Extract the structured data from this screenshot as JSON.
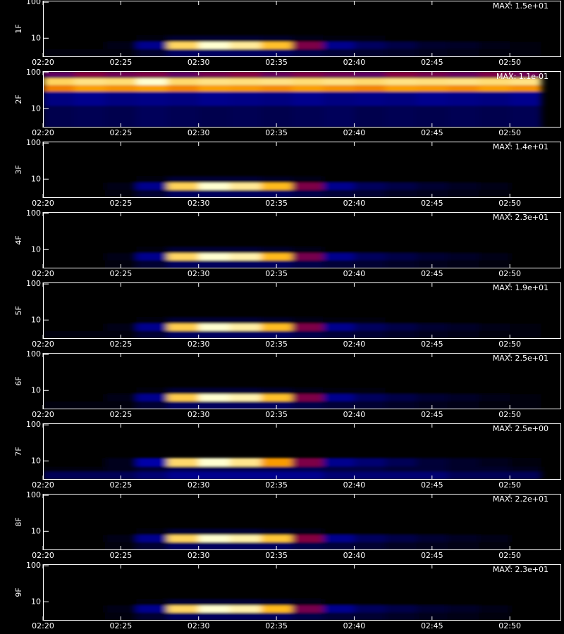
{
  "chart_data": [
    {
      "type": "heatmap",
      "ylabel": "1F",
      "max": {
        "value": 15,
        "label": "MAX: 1.5e+01"
      },
      "log_y": true,
      "colormap": [
        "#000000",
        "#0000b0",
        "#d00000",
        "#ffb000",
        "#ffffd0"
      ],
      "xlim": [
        140,
        173.3
      ],
      "xticks": [
        {
          "value": 140,
          "label": "02:20"
        },
        {
          "value": 145,
          "label": "02:25"
        },
        {
          "value": 150,
          "label": "02:30"
        },
        {
          "value": 155,
          "label": "02:35"
        },
        {
          "value": 160,
          "label": "02:40"
        },
        {
          "value": 165,
          "label": "02:45"
        },
        {
          "value": 170,
          "label": "02:50"
        }
      ],
      "ylim": [
        3,
        110
      ],
      "yticks": [
        10,
        100
      ],
      "time_bins": [
        140,
        142,
        144,
        146,
        148,
        150,
        152,
        154,
        156,
        158,
        160,
        162,
        164,
        166,
        168,
        170,
        172
      ],
      "freq_bins": [
        3,
        5,
        8,
        12
      ],
      "values": [
        [
          0.2,
          0.2,
          0.3,
          1,
          2,
          2,
          2,
          2,
          1.5,
          1.2,
          1,
          0.8,
          0.6,
          0.5,
          0.3,
          0.2
        ],
        [
          0,
          0,
          0.5,
          3,
          13,
          15,
          14,
          12,
          6,
          3,
          2,
          1.5,
          1,
          0.8,
          0.5,
          0.2
        ],
        [
          0,
          0,
          0,
          0.3,
          1,
          1,
          1,
          0.8,
          0.5,
          0.2,
          0.2,
          0,
          0,
          0,
          0,
          0
        ]
      ]
    },
    {
      "type": "heatmap",
      "ylabel": "2F",
      "max": {
        "value": 0.11,
        "label": "MAX: 1.1e-01"
      },
      "log_y": true,
      "colormap": [
        "#000000",
        "#0000b0",
        "#d00000",
        "#ffb000",
        "#ffffd0"
      ],
      "xlim": [
        140,
        173.3
      ],
      "xticks": [
        {
          "value": 140,
          "label": "02:20"
        },
        {
          "value": 145,
          "label": "02:25"
        },
        {
          "value": 150,
          "label": "02:30"
        },
        {
          "value": 155,
          "label": "02:35"
        },
        {
          "value": 160,
          "label": "02:40"
        },
        {
          "value": 165,
          "label": "02:45"
        },
        {
          "value": 170,
          "label": "02:50"
        }
      ],
      "ylim": [
        3,
        110
      ],
      "yticks": [
        10,
        100
      ],
      "time_bins": [
        140,
        142,
        144,
        146,
        148,
        150,
        152,
        154,
        156,
        158,
        160,
        162,
        164,
        166,
        168,
        170,
        172
      ],
      "freq_bins": [
        3,
        12,
        30,
        45,
        70,
        110
      ],
      "values": [
        [
          0.012,
          0.013,
          0.012,
          0.014,
          0.013,
          0.012,
          0.013,
          0.012,
          0.013,
          0.014,
          0.012,
          0.013,
          0.012,
          0.013,
          0.012,
          0.013
        ],
        [
          0.02,
          0.022,
          0.02,
          0.021,
          0.02,
          0.022,
          0.021,
          0.02,
          0.022,
          0.02,
          0.021,
          0.02,
          0.022,
          0.021,
          0.02,
          0.022
        ],
        [
          0.075,
          0.08,
          0.078,
          0.08,
          0.076,
          0.08,
          0.079,
          0.077,
          0.08,
          0.078,
          0.076,
          0.08,
          0.079,
          0.077,
          0.08,
          0.078
        ],
        [
          0.095,
          0.1,
          0.098,
          0.11,
          0.097,
          0.1,
          0.099,
          0.1,
          0.098,
          0.1,
          0.097,
          0.1,
          0.099,
          0.1,
          0.098,
          0.1
        ],
        [
          0.04,
          0.045,
          0.042,
          0.044,
          0.04,
          0.043,
          0.045,
          0.041,
          0.044,
          0.042,
          0.04,
          0.045,
          0.043,
          0.041,
          0.044,
          0.042
        ]
      ]
    },
    {
      "type": "heatmap",
      "ylabel": "3F",
      "max": {
        "value": 14,
        "label": "MAX: 1.4e+01"
      },
      "log_y": true,
      "colormap": [
        "#000000",
        "#0000b0",
        "#d00000",
        "#ffb000",
        "#ffffd0"
      ],
      "xlim": [
        140,
        173.3
      ],
      "xticks": [
        {
          "value": 140,
          "label": "02:20"
        },
        {
          "value": 145,
          "label": "02:25"
        },
        {
          "value": 150,
          "label": "02:30"
        },
        {
          "value": 155,
          "label": "02:35"
        },
        {
          "value": 160,
          "label": "02:40"
        },
        {
          "value": 165,
          "label": "02:45"
        },
        {
          "value": 170,
          "label": "02:50"
        }
      ],
      "ylim": [
        3,
        110
      ],
      "yticks": [
        10,
        100
      ],
      "time_bins": [
        140,
        142,
        144,
        146,
        148,
        150,
        152,
        154,
        156,
        158,
        160,
        162,
        164,
        166,
        168,
        170,
        172
      ],
      "freq_bins": [
        3,
        5,
        8,
        12
      ],
      "values": [
        [
          0.1,
          0.1,
          0.3,
          1,
          1.8,
          1.8,
          1.8,
          1.8,
          1.4,
          1.1,
          1,
          0.7,
          0.6,
          0.4,
          0.3,
          0.1
        ],
        [
          0,
          0,
          0.4,
          2.8,
          12,
          14,
          13,
          11,
          5.6,
          2.8,
          1.8,
          1.4,
          1,
          0.7,
          0.4,
          0.1
        ],
        [
          0,
          0,
          0,
          0.3,
          1,
          1,
          1,
          0.7,
          0.4,
          0.1,
          0.1,
          0,
          0,
          0,
          0,
          0
        ]
      ]
    },
    {
      "type": "heatmap",
      "ylabel": "4F",
      "max": {
        "value": 23,
        "label": "MAX: 2.3e+01"
      },
      "log_y": true,
      "colormap": [
        "#000000",
        "#0000b0",
        "#d00000",
        "#ffb000",
        "#ffffd0"
      ],
      "xlim": [
        140,
        173.3
      ],
      "xticks": [
        {
          "value": 140,
          "label": "02:20"
        },
        {
          "value": 145,
          "label": "02:25"
        },
        {
          "value": 150,
          "label": "02:30"
        },
        {
          "value": 155,
          "label": "02:35"
        },
        {
          "value": 160,
          "label": "02:40"
        },
        {
          "value": 165,
          "label": "02:45"
        },
        {
          "value": 170,
          "label": "02:50"
        }
      ],
      "ylim": [
        3,
        110
      ],
      "yticks": [
        10,
        100
      ],
      "time_bins": [
        140,
        142,
        144,
        146,
        148,
        150,
        152,
        154,
        156,
        158,
        160,
        162,
        164,
        166,
        168,
        170,
        172
      ],
      "freq_bins": [
        3,
        5,
        8,
        12
      ],
      "values": [
        [
          0.2,
          0.2,
          0.5,
          1.6,
          3,
          3,
          3,
          3,
          2.3,
          1.8,
          1.6,
          1.2,
          0.9,
          0.7,
          0.5,
          0.2
        ],
        [
          0,
          0,
          0.7,
          4.6,
          20,
          23,
          22,
          18,
          9,
          4.6,
          3,
          2.3,
          1.6,
          1.2,
          0.7,
          0.2
        ],
        [
          0,
          0,
          0,
          0.5,
          1.6,
          1.6,
          1.6,
          1.2,
          0.7,
          0.2,
          0.2,
          0,
          0,
          0,
          0,
          0
        ]
      ]
    },
    {
      "type": "heatmap",
      "ylabel": "5F",
      "max": {
        "value": 19,
        "label": "MAX: 1.9e+01"
      },
      "log_y": true,
      "colormap": [
        "#000000",
        "#0000b0",
        "#d00000",
        "#ffb000",
        "#ffffd0"
      ],
      "xlim": [
        140,
        173.3
      ],
      "xticks": [
        {
          "value": 140,
          "label": "02:20"
        },
        {
          "value": 145,
          "label": "02:25"
        },
        {
          "value": 150,
          "label": "02:30"
        },
        {
          "value": 155,
          "label": "02:35"
        },
        {
          "value": 160,
          "label": "02:40"
        },
        {
          "value": 165,
          "label": "02:45"
        },
        {
          "value": 170,
          "label": "02:50"
        }
      ],
      "ylim": [
        3,
        110
      ],
      "yticks": [
        10,
        100
      ],
      "time_bins": [
        140,
        142,
        144,
        146,
        148,
        150,
        152,
        154,
        156,
        158,
        160,
        162,
        164,
        166,
        168,
        170,
        172
      ],
      "freq_bins": [
        3,
        5,
        8,
        12
      ],
      "values": [
        [
          0.2,
          0.2,
          0.4,
          1.3,
          2.5,
          2.5,
          2.5,
          2.5,
          1.9,
          1.5,
          1.3,
          1,
          0.8,
          0.6,
          0.4,
          0.2
        ],
        [
          0,
          0,
          0.6,
          3.8,
          16,
          19,
          18,
          15,
          7.6,
          3.8,
          2.5,
          1.9,
          1.3,
          1,
          0.6,
          0.2
        ],
        [
          0,
          0,
          0,
          0.4,
          1.3,
          1.3,
          1.3,
          1,
          0.6,
          0.2,
          0.2,
          0,
          0,
          0,
          0,
          0
        ]
      ]
    },
    {
      "type": "heatmap",
      "ylabel": "6F",
      "max": {
        "value": 25,
        "label": "MAX: 2.5e+01"
      },
      "log_y": true,
      "colormap": [
        "#000000",
        "#0000b0",
        "#d00000",
        "#ffb000",
        "#ffffd0"
      ],
      "xlim": [
        140,
        173.3
      ],
      "xticks": [
        {
          "value": 140,
          "label": "02:20"
        },
        {
          "value": 145,
          "label": "02:25"
        },
        {
          "value": 150,
          "label": "02:30"
        },
        {
          "value": 155,
          "label": "02:35"
        },
        {
          "value": 160,
          "label": "02:40"
        },
        {
          "value": 165,
          "label": "02:45"
        },
        {
          "value": 170,
          "label": "02:50"
        }
      ],
      "ylim": [
        3,
        110
      ],
      "yticks": [
        10,
        100
      ],
      "time_bins": [
        140,
        142,
        144,
        146,
        148,
        150,
        152,
        154,
        156,
        158,
        160,
        162,
        164,
        166,
        168,
        170,
        172
      ],
      "freq_bins": [
        3,
        5,
        8,
        12
      ],
      "values": [
        [
          0.3,
          0.3,
          0.5,
          1.8,
          3.3,
          3.3,
          3.3,
          3.3,
          2.5,
          2,
          1.8,
          1.3,
          1,
          0.8,
          0.5,
          0.3
        ],
        [
          0,
          0,
          0.8,
          5,
          21,
          25,
          24,
          20,
          10,
          5,
          3.3,
          2.5,
          1.8,
          1.3,
          0.8,
          0.3
        ],
        [
          0,
          0,
          0,
          0.5,
          1.8,
          1.8,
          1.8,
          1.3,
          0.8,
          0.3,
          0.3,
          0,
          0,
          0,
          0,
          0
        ]
      ]
    },
    {
      "type": "heatmap",
      "ylabel": "7F",
      "max": {
        "value": 2.5,
        "label": "MAX: 2.5e+00"
      },
      "log_y": true,
      "colormap": [
        "#000000",
        "#0000b0",
        "#d00000",
        "#ffb000",
        "#ffffd0"
      ],
      "xlim": [
        140,
        173.3
      ],
      "xticks": [
        {
          "value": 140,
          "label": "02:20"
        },
        {
          "value": 145,
          "label": "02:25"
        },
        {
          "value": 150,
          "label": "02:30"
        },
        {
          "value": 155,
          "label": "02:35"
        },
        {
          "value": 160,
          "label": "02:40"
        },
        {
          "value": 165,
          "label": "02:45"
        },
        {
          "value": 170,
          "label": "02:50"
        }
      ],
      "ylim": [
        3,
        110
      ],
      "yticks": [
        10,
        100
      ],
      "time_bins": [
        140,
        142,
        144,
        146,
        148,
        150,
        152,
        154,
        156,
        158,
        160,
        162,
        164,
        166,
        168,
        170,
        172
      ],
      "freq_bins": [
        3,
        5,
        7,
        12
      ],
      "values": [
        [
          0.3,
          0.3,
          0.3,
          0.4,
          0.5,
          0.5,
          0.5,
          0.5,
          0.5,
          0.4,
          0.4,
          0.4,
          0.4,
          0.3,
          0.3,
          0.3
        ],
        [
          0.05,
          0.05,
          0.1,
          0.2,
          0.3,
          0.3,
          0.3,
          0.3,
          0.3,
          0.25,
          0.25,
          0.2,
          0.2,
          0.15,
          0.15,
          0.1
        ],
        [
          0,
          0,
          0.1,
          0.6,
          2.2,
          2.5,
          2.3,
          1.8,
          1,
          0.5,
          0.4,
          0.3,
          0.2,
          0.15,
          0.1,
          0.05
        ]
      ]
    },
    {
      "type": "heatmap",
      "ylabel": "8F",
      "max": {
        "value": 22,
        "label": "MAX: 2.2e+01"
      },
      "log_y": true,
      "colormap": [
        "#000000",
        "#0000b0",
        "#d00000",
        "#ffb000",
        "#ffffd0"
      ],
      "xlim": [
        140,
        173.3
      ],
      "xticks": [
        {
          "value": 140,
          "label": "02:20"
        },
        {
          "value": 145,
          "label": "02:25"
        },
        {
          "value": 150,
          "label": "02:30"
        },
        {
          "value": 155,
          "label": "02:35"
        },
        {
          "value": 160,
          "label": "02:40"
        },
        {
          "value": 165,
          "label": "02:45"
        },
        {
          "value": 170,
          "label": "02:50"
        }
      ],
      "ylim": [
        3,
        110
      ],
      "yticks": [
        10,
        100
      ],
      "time_bins": [
        140,
        142,
        144,
        146,
        148,
        150,
        152,
        154,
        156,
        158,
        160,
        162,
        164,
        166,
        168,
        170,
        172
      ],
      "freq_bins": [
        3,
        5,
        8,
        12
      ],
      "values": [
        [
          0.2,
          0.2,
          0.4,
          1.5,
          2.9,
          2.9,
          2.9,
          2.9,
          2.2,
          1.8,
          1.5,
          1.1,
          0.9,
          0.7,
          0.4,
          0.2
        ],
        [
          0,
          0,
          0.7,
          4.4,
          19,
          22,
          21,
          18,
          9,
          4.4,
          2.9,
          2.2,
          1.5,
          1.1,
          0.7,
          0.2
        ],
        [
          0,
          0,
          0,
          0.4,
          1.5,
          1.5,
          1.5,
          1.1,
          0.7,
          0.2,
          0.2,
          0,
          0,
          0,
          0,
          0
        ]
      ]
    },
    {
      "type": "heatmap",
      "ylabel": "9F",
      "max": {
        "value": 23,
        "label": "MAX: 2.3e+01"
      },
      "log_y": true,
      "colormap": [
        "#000000",
        "#0000b0",
        "#d00000",
        "#ffb000",
        "#ffffd0"
      ],
      "xlim": [
        140,
        173.3
      ],
      "xticks": [
        {
          "value": 140,
          "label": "02:20"
        },
        {
          "value": 145,
          "label": "02:25"
        },
        {
          "value": 150,
          "label": "02:30"
        },
        {
          "value": 155,
          "label": "02:35"
        },
        {
          "value": 160,
          "label": "02:40"
        },
        {
          "value": 165,
          "label": "02:45"
        },
        {
          "value": 170,
          "label": "02:50"
        }
      ],
      "ylim": [
        3,
        110
      ],
      "yticks": [
        10,
        100
      ],
      "time_bins": [
        140,
        142,
        144,
        146,
        148,
        150,
        152,
        154,
        156,
        158,
        160,
        162,
        164,
        166,
        168,
        170,
        172
      ],
      "freq_bins": [
        3,
        5,
        8,
        12
      ],
      "values": [
        [
          0.2,
          0.2,
          0.5,
          1.6,
          3,
          3,
          3,
          3,
          2.3,
          1.8,
          1.6,
          1.2,
          0.9,
          0.7,
          0.5,
          0.2
        ],
        [
          0,
          0,
          0.7,
          4.6,
          20,
          23,
          22,
          18,
          9,
          4.6,
          3,
          2.3,
          1.6,
          1.2,
          0.7,
          0.2
        ],
        [
          0,
          0,
          0,
          0.5,
          1.6,
          1.6,
          1.6,
          1.2,
          0.7,
          0.2,
          0.2,
          0,
          0,
          0,
          0,
          0
        ]
      ]
    }
  ]
}
